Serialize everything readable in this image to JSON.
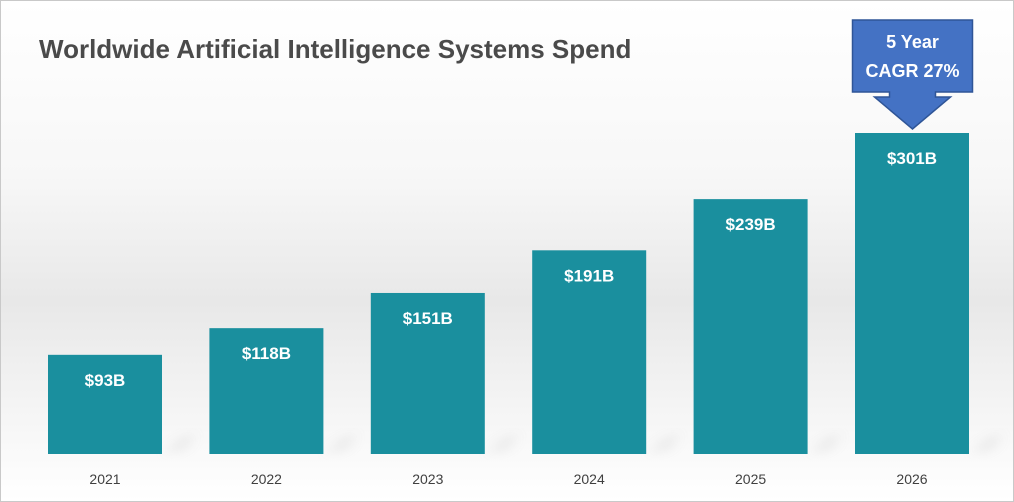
{
  "chart_data": {
    "type": "bar",
    "title": "Worldwide Artificial Intelligence Systems Spend",
    "categories": [
      "2021",
      "2022",
      "2023",
      "2024",
      "2025",
      "2026"
    ],
    "values": [
      93,
      118,
      151,
      191,
      239,
      301
    ],
    "data_labels": [
      "$93B",
      "$118B",
      "$151B",
      "$191B",
      "$239B",
      "$301B"
    ],
    "unit": "$B",
    "ylim": [
      0,
      320
    ],
    "grid": false,
    "legend": "none",
    "bar_color": "#1a8f9e",
    "annotation": {
      "line1": "5 Year",
      "line2": "CAGR 27%",
      "target_category": "2026",
      "color": "#4472c4"
    }
  }
}
